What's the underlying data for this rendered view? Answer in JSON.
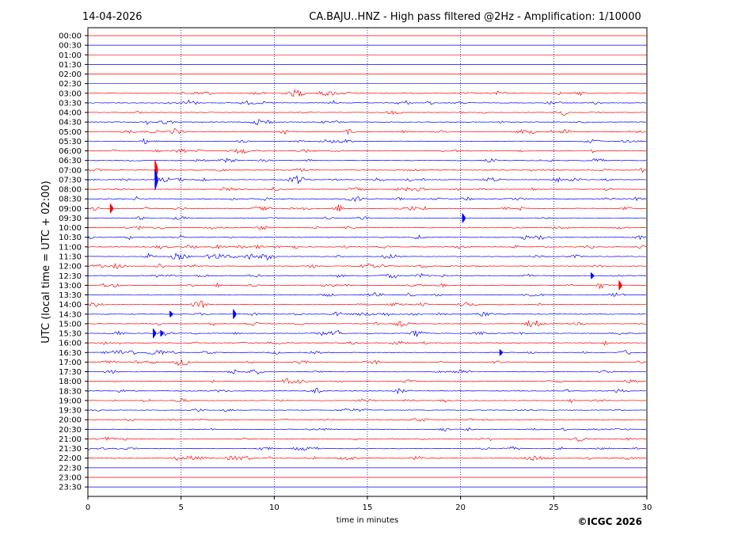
{
  "header": {
    "date": "14-04-2026",
    "title": "CA.BAJU..HNZ - High pass filtered @2Hz - Amplification: 1/10000"
  },
  "footer": {
    "copyright": "©ICGC 2026"
  },
  "chart_data": {
    "type": "line",
    "title": "CA.BAJU..HNZ - High pass filtered @2Hz - Amplification: 1/10000",
    "xlabel": "time in minutes",
    "ylabel": "UTC (local time = UTC + 02:00)",
    "xlim": [
      0,
      30
    ],
    "x_ticks": [
      0,
      5,
      10,
      15,
      20,
      25,
      30
    ],
    "grid": "vertical dotted lines at x ticks",
    "colors": {
      "odd_rows": "#ff0000",
      "even_rows": "#0000ff",
      "grid": "#000080",
      "frame": "#000000"
    },
    "rows": [
      "00:00",
      "00:30",
      "01:00",
      "01:30",
      "02:00",
      "02:30",
      "03:00",
      "03:30",
      "04:00",
      "04:30",
      "05:00",
      "05:30",
      "06:00",
      "06:30",
      "07:00",
      "07:30",
      "08:00",
      "08:30",
      "09:00",
      "09:30",
      "10:00",
      "10:30",
      "11:00",
      "11:30",
      "12:00",
      "12:30",
      "13:00",
      "13:30",
      "14:00",
      "14:30",
      "15:00",
      "15:30",
      "16:00",
      "16:30",
      "17:00",
      "17:30",
      "18:00",
      "18:30",
      "19:00",
      "19:30",
      "20:00",
      "20:30",
      "21:00",
      "21:30",
      "22:00",
      "22:30",
      "23:00",
      "23:30"
    ],
    "activity_rows": [
      "03:00",
      "03:30",
      "04:00",
      "04:30",
      "05:00",
      "05:30",
      "06:00",
      "06:30",
      "07:00",
      "07:30",
      "08:00",
      "08:30",
      "09:00",
      "09:30",
      "10:00",
      "10:30",
      "11:00",
      "11:30",
      "12:00",
      "12:30",
      "13:00",
      "13:30",
      "14:00",
      "14:30",
      "15:00",
      "15:30",
      "16:00",
      "16:30",
      "17:00",
      "17:30",
      "18:00",
      "18:30",
      "19:00",
      "19:30",
      "20:00",
      "20:30",
      "21:00",
      "21:30",
      "22:00"
    ],
    "events": [
      {
        "row": "07:00",
        "minute": 3.6,
        "amplitude": "large"
      },
      {
        "row": "07:30",
        "minute": 3.6,
        "amplitude": "large"
      },
      {
        "row": "09:00",
        "minute": 1.2,
        "amplitude": "medium"
      },
      {
        "row": "09:30",
        "minute": 20.1,
        "amplitude": "medium"
      },
      {
        "row": "12:30",
        "minute": 27.0,
        "amplitude": "small"
      },
      {
        "row": "13:00",
        "minute": 28.5,
        "amplitude": "medium"
      },
      {
        "row": "14:30",
        "minute": 7.8,
        "amplitude": "medium"
      },
      {
        "row": "14:30",
        "minute": 4.4,
        "amplitude": "small"
      },
      {
        "row": "15:30",
        "minute": 3.5,
        "amplitude": "medium"
      },
      {
        "row": "15:30",
        "minute": 3.9,
        "amplitude": "small"
      },
      {
        "row": "16:30",
        "minute": 22.1,
        "amplitude": "small"
      }
    ]
  }
}
